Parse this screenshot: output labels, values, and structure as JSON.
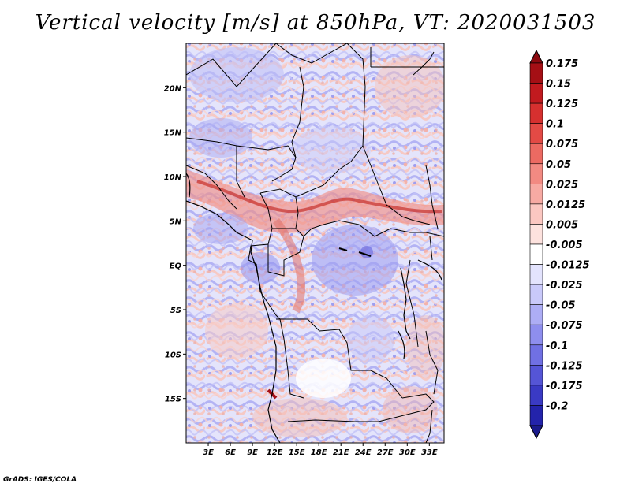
{
  "title": "Vertical velocity [m/s] at 850hPa, VT: 2020031503",
  "footer": "GrADS: IGES/COLA",
  "colors": {
    "strong_up": "#a50f15",
    "mid_up": "#ef6a62",
    "weak_up": "#fbd4cf",
    "neutral": "#ffffff",
    "weak_down": "#d3d3fb",
    "mid_down": "#8c8ced",
    "strong_down": "#1f1f9c",
    "boundary": "#000000"
  },
  "map": {
    "lon_range": [
      0,
      35
    ],
    "lat_range": [
      -20,
      25
    ],
    "lon_ticks": [
      {
        "value": 3,
        "label": "3E"
      },
      {
        "value": 6,
        "label": "6E"
      },
      {
        "value": 9,
        "label": "9E"
      },
      {
        "value": 12,
        "label": "12E"
      },
      {
        "value": 15,
        "label": "15E"
      },
      {
        "value": 18,
        "label": "18E"
      },
      {
        "value": 21,
        "label": "21E"
      },
      {
        "value": 24,
        "label": "24E"
      },
      {
        "value": 27,
        "label": "27E"
      },
      {
        "value": 30,
        "label": "30E"
      },
      {
        "value": 33,
        "label": "33E"
      }
    ],
    "lat_ticks": [
      {
        "value": 20,
        "label": "20N"
      },
      {
        "value": 15,
        "label": "15N"
      },
      {
        "value": 10,
        "label": "10N"
      },
      {
        "value": 5,
        "label": "5N"
      },
      {
        "value": 0,
        "label": "EQ"
      },
      {
        "value": -5,
        "label": "5S"
      },
      {
        "value": -10,
        "label": "10S"
      },
      {
        "value": -15,
        "label": "15S"
      }
    ]
  },
  "chart_data": {
    "type": "heatmap",
    "title": "Vertical velocity [m/s] at 850hPa, VT: 2020031503",
    "variable": "Vertical velocity",
    "units": "m/s",
    "level": "850hPa",
    "valid_time": "2020031503",
    "xlim": [
      0,
      35
    ],
    "ylim": [
      -20,
      25
    ],
    "colorbar_levels": [
      {
        "label": "0.175",
        "color": "#a50f15"
      },
      {
        "label": "0.15",
        "color": "#c11a1f"
      },
      {
        "label": "0.125",
        "color": "#d6302f"
      },
      {
        "label": "0.1",
        "color": "#e34a45"
      },
      {
        "label": "0.075",
        "color": "#ec6a62"
      },
      {
        "label": "0.05",
        "color": "#f28a82"
      },
      {
        "label": "0.025",
        "color": "#f7aaa3"
      },
      {
        "label": "0.0125",
        "color": "#fbc7c1"
      },
      {
        "label": "0.005",
        "color": "#fde2de"
      },
      {
        "label": "-0.005",
        "color": "#ffffff"
      },
      {
        "label": "-0.0125",
        "color": "#e3e3fd"
      },
      {
        "label": "-0.025",
        "color": "#c9c9fa"
      },
      {
        "label": "-0.05",
        "color": "#adadf5"
      },
      {
        "label": "-0.075",
        "color": "#8e8eee"
      },
      {
        "label": "-0.1",
        "color": "#7070e3"
      },
      {
        "label": "-0.125",
        "color": "#5555d6"
      },
      {
        "label": "-0.175",
        "color": "#3a3ac4"
      },
      {
        "label": "-0.2",
        "color": "#2323ab"
      }
    ],
    "below_min_color": "#1a1a8c",
    "above_max_color": "#8c0a10",
    "notable_features": [
      {
        "description": "band of ascent (positive)",
        "lon_range": [
          0,
          35
        ],
        "lat_range": [
          5,
          10
        ]
      },
      {
        "description": "strong ascent cell",
        "lon": 12.5,
        "lat": -15
      }
    ]
  }
}
